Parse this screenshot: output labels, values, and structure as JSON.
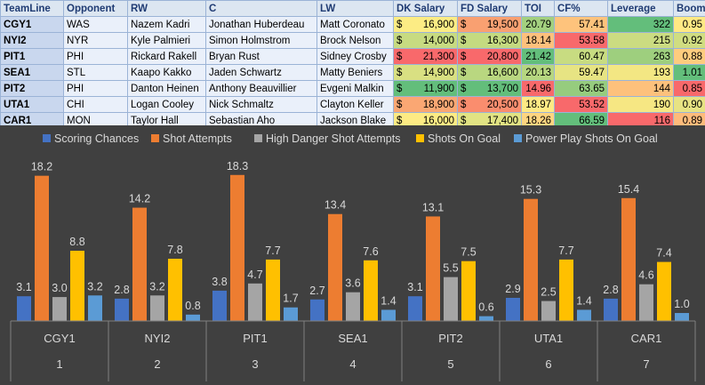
{
  "table": {
    "headers": [
      "TeamLine",
      "Opponent",
      "RW",
      "C",
      "LW",
      "DK Salary",
      "FD Salary",
      "TOI",
      "CF%",
      "Leverage",
      "Boom"
    ],
    "rows": [
      {
        "teamline": "CGY1",
        "opponent": "WAS",
        "rw": "Nazem Kadri",
        "c": "Jonathan Huberdeau",
        "lw": "Matt Coronato",
        "dk": "16,900",
        "fd": "19,500",
        "toi": "20.79",
        "cf": "57.41",
        "leverage": "322",
        "boom": "0.95"
      },
      {
        "teamline": "NYI2",
        "opponent": "NYR",
        "rw": "Kyle Palmieri",
        "c": "Simon Holmstrom",
        "lw": "Brock Nelson",
        "dk": "14,000",
        "fd": "16,300",
        "toi": "18.14",
        "cf": "53.58",
        "leverage": "215",
        "boom": "0.92"
      },
      {
        "teamline": "PIT1",
        "opponent": "PHI",
        "rw": "Rickard Rakell",
        "c": "Bryan Rust",
        "lw": "Sidney Crosby",
        "dk": "21,300",
        "fd": "20,800",
        "toi": "21.42",
        "cf": "60.47",
        "leverage": "263",
        "boom": "0.88"
      },
      {
        "teamline": "SEA1",
        "opponent": "STL",
        "rw": "Kaapo Kakko",
        "c": "Jaden Schwartz",
        "lw": "Matty Beniers",
        "dk": "14,900",
        "fd": "16,600",
        "toi": "20.13",
        "cf": "59.47",
        "leverage": "193",
        "boom": "1.01"
      },
      {
        "teamline": "PIT2",
        "opponent": "PHI",
        "rw": "Danton Heinen",
        "c": "Anthony Beauvillier",
        "lw": "Evgeni Malkin",
        "dk": "11,900",
        "fd": "13,700",
        "toi": "14.96",
        "cf": "63.65",
        "leverage": "144",
        "boom": "0.85"
      },
      {
        "teamline": "UTA1",
        "opponent": "CHI",
        "rw": "Logan Cooley",
        "c": "Nick Schmaltz",
        "lw": "Clayton Keller",
        "dk": "18,900",
        "fd": "20,500",
        "toi": "18.97",
        "cf": "53.52",
        "leverage": "190",
        "boom": "0.90"
      },
      {
        "teamline": "CAR1",
        "opponent": "MON",
        "rw": "Taylor Hall",
        "c": "Sebastian Aho",
        "lw": "Jackson Blake",
        "dk": "16,000",
        "fd": "17,400",
        "toi": "18.26",
        "cf": "66.59",
        "leverage": "116",
        "boom": "0.89"
      }
    ],
    "currency_symbol": "$",
    "cell_colors": {
      "dk": [
        "#fcec84",
        "#c7db81",
        "#f8696b",
        "#d9e082",
        "#63be7b",
        "#faa773",
        "#fdeb84"
      ],
      "fd": [
        "#f9a071",
        "#c4da80",
        "#f8696b",
        "#b9d780",
        "#63be7b",
        "#fa8d6e",
        "#e1e383"
      ],
      "toi": [
        "#a3d07f",
        "#fec07c",
        "#63be7b",
        "#b6d680",
        "#f8696b",
        "#ffe984",
        "#fdd580"
      ],
      "cf": [
        "#fec37c",
        "#f8696b",
        "#c8dc81",
        "#e7e483",
        "#96cc7e",
        "#f8696b",
        "#63be7b"
      ],
      "leverage": [
        "#63be7b",
        "#cbdc81",
        "#9ecf7e",
        "#f3e783",
        "#fdc17c",
        "#f6e783",
        "#f8696b"
      ],
      "boom": [
        "#ffe984",
        "#d0dd81",
        "#fecc7e",
        "#63be7b",
        "#f8696b",
        "#e7e383",
        "#febb7b"
      ]
    }
  },
  "chart_data": {
    "type": "bar",
    "categories": [
      "CGY1",
      "NYI2",
      "PIT1",
      "SEA1",
      "PIT2",
      "UTA1",
      "CAR1"
    ],
    "category_indices": [
      "1",
      "2",
      "3",
      "4",
      "5",
      "6",
      "7"
    ],
    "series": [
      {
        "name": "Scoring Chances",
        "color": "#4472c4",
        "values": [
          3.1,
          2.8,
          3.8,
          2.7,
          3.1,
          2.9,
          2.8
        ]
      },
      {
        "name": "Shot Attempts",
        "color": "#ed7d31",
        "values": [
          18.2,
          14.2,
          18.3,
          13.4,
          13.1,
          15.3,
          15.4
        ]
      },
      {
        "name": "High Danger Shot Attempts",
        "color": "#a5a5a5",
        "values": [
          3.0,
          3.2,
          4.7,
          3.6,
          5.5,
          2.5,
          4.6
        ]
      },
      {
        "name": "Shots On Goal",
        "color": "#ffc000",
        "values": [
          8.8,
          7.8,
          7.7,
          7.6,
          7.5,
          7.7,
          7.4
        ]
      },
      {
        "name": "Power Play Shots On Goal",
        "color": "#5b9bd5",
        "values": [
          3.2,
          0.8,
          1.7,
          1.4,
          0.6,
          1.4,
          1.0
        ]
      }
    ],
    "value_labels": [
      [
        "3.1",
        "2.8",
        "3.8",
        "2.7",
        "3.1",
        "2.9",
        "2.8"
      ],
      [
        "18.2",
        "14.2",
        "18.3",
        "13.4",
        "13.1",
        "15.3",
        "15.4"
      ],
      [
        "3.0",
        "3.2",
        "4.7",
        "3.6",
        "5.5",
        "2.5",
        "4.6"
      ],
      [
        "8.8",
        "7.8",
        "7.7",
        "7.6",
        "7.5",
        "7.7",
        "7.4"
      ],
      [
        "3.2",
        "0.8",
        "1.7",
        "1.4",
        "0.6",
        "1.4",
        "1.0"
      ]
    ],
    "ylim": [
      0,
      19.5
    ],
    "legend": "top",
    "background": "#404040",
    "text_color": "#d9d9d9"
  }
}
